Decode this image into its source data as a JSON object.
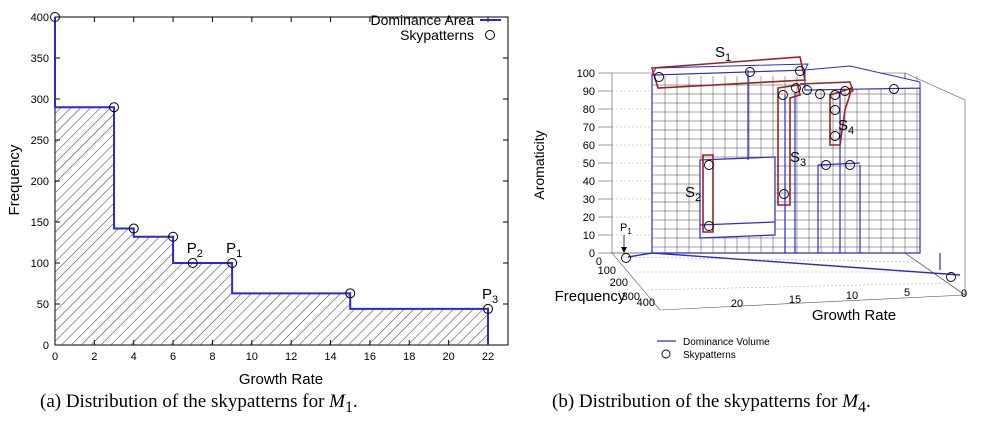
{
  "chart_data": [
    {
      "id": "a",
      "type": "line",
      "xlabel": "Growth Rate",
      "ylabel": "Frequency",
      "xlim": [
        0,
        22
      ],
      "ylim": [
        0,
        400
      ],
      "xticks": [
        "0",
        "2",
        "4",
        "6",
        "8",
        "10",
        "12",
        "14",
        "16",
        "18",
        "20",
        "22"
      ],
      "yticks": [
        "0",
        "50",
        "100",
        "150",
        "200",
        "250",
        "300",
        "350",
        "400"
      ],
      "legend": {
        "position": "top-right",
        "line_label": "Dominance Area",
        "marker_label": "Skypatterns"
      },
      "dominance_area": {
        "x": [
          0,
          0,
          3,
          3,
          4,
          4,
          6,
          6,
          9,
          9,
          15,
          15,
          22,
          22
        ],
        "y": [
          400,
          290,
          290,
          142,
          142,
          132,
          132,
          100,
          100,
          63,
          63,
          44,
          44,
          0
        ]
      },
      "skypatterns": {
        "x": [
          0,
          3,
          4,
          6,
          7,
          9,
          15,
          22
        ],
        "y": [
          400,
          290,
          142,
          132,
          100,
          100,
          63,
          44
        ]
      },
      "annotations": [
        {
          "text": "P",
          "sub": "2",
          "x": 7,
          "y": 100
        },
        {
          "text": "P",
          "sub": "1",
          "x": 9,
          "y": 100
        },
        {
          "text": "P",
          "sub": "3",
          "x": 22,
          "y": 44
        }
      ],
      "colors": {
        "line": "#2a2acc",
        "hatch": "#444444",
        "marker": "#000000"
      }
    },
    {
      "id": "b",
      "type": "bar3d",
      "zlabel": "Aromaticity",
      "xlabel": "Growth Rate",
      "ylabel": "Frequency",
      "zticks": [
        "0",
        "10",
        "20",
        "30",
        "40",
        "50",
        "60",
        "70",
        "80",
        "90",
        "100"
      ],
      "xticks": [
        "20",
        "15",
        "10",
        "5",
        "0"
      ],
      "yticks": [
        "0",
        "100",
        "200",
        "300",
        "400"
      ],
      "legend": {
        "position": "bottom-left",
        "line_label": "Dominance Volume",
        "marker_label": "Skypatterns"
      },
      "annotations": [
        "S1",
        "S2",
        "S3",
        "S4",
        "P1"
      ],
      "colors": {
        "line": "#2a2acc",
        "group": "#992222",
        "grid": "#999999"
      }
    }
  ],
  "captions": [
    {
      "before": "(a) Distribution of the skypatterns for ",
      "math": "M",
      "sub": "1",
      "after": "."
    },
    {
      "before": "(b) Distribution of the skypatterns for ",
      "math": "M",
      "sub": "4",
      "after": "."
    }
  ]
}
